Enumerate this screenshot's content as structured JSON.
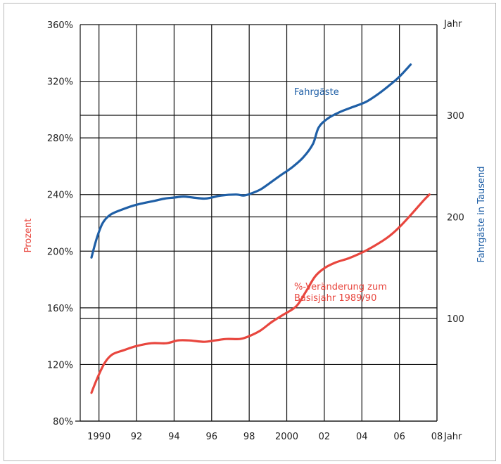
{
  "chart_data": {
    "type": "line",
    "left_axis": {
      "label": "Prozent",
      "ticks": [
        "360%",
        "320%",
        "280%",
        "240%",
        "200%",
        "160%",
        "120%",
        "80%"
      ],
      "tick_values": [
        360,
        320,
        280,
        240,
        200,
        160,
        120,
        80
      ],
      "range": [
        80,
        360
      ],
      "color": "#e8463e"
    },
    "right_axis": {
      "label": "Fahrgäste in Tausend",
      "top_label": "Jahr",
      "ticks": [
        "300",
        "200",
        "100"
      ],
      "tick_values": [
        300,
        200,
        100
      ],
      "range": [
        0,
        300
      ],
      "color": "#1f5fa6"
    },
    "x_axis": {
      "label": "Jahr",
      "ticks": [
        "1990",
        "92",
        "94",
        "96",
        "98",
        "2000",
        "02",
        "04",
        "06",
        "08"
      ],
      "tick_values": [
        1990,
        1992,
        1994,
        1996,
        1998,
        2000,
        2002,
        2004,
        2006,
        2008
      ],
      "range": [
        1989,
        2008
      ]
    },
    "grid": true,
    "series": [
      {
        "name": "Fahrgäste",
        "axis": "right",
        "color": "#1f5fa6",
        "points": [
          [
            1989.6,
            160
          ],
          [
            1989.9,
            180
          ],
          [
            1990.2,
            194
          ],
          [
            1990.6,
            202
          ],
          [
            1991.2,
            207
          ],
          [
            1992.0,
            212
          ],
          [
            1993.0,
            216
          ],
          [
            1993.5,
            218
          ],
          [
            1994.0,
            219
          ],
          [
            1994.5,
            220
          ],
          [
            1995.0,
            219
          ],
          [
            1995.6,
            218
          ],
          [
            1996.0,
            219
          ],
          [
            1996.5,
            221
          ],
          [
            1997.3,
            222
          ],
          [
            1997.7,
            221
          ],
          [
            1998.1,
            223
          ],
          [
            1998.6,
            227
          ],
          [
            1999.0,
            232
          ],
          [
            1999.6,
            240
          ],
          [
            2000.3,
            249
          ],
          [
            2000.9,
            259
          ],
          [
            2001.4,
            272
          ],
          [
            2001.7,
            288
          ],
          [
            2002.2,
            297
          ],
          [
            2002.8,
            303
          ],
          [
            2003.5,
            308
          ],
          [
            2004.2,
            313
          ],
          [
            2004.8,
            320
          ],
          [
            2005.5,
            330
          ],
          [
            2006.0,
            338
          ],
          [
            2006.6,
            350
          ]
        ]
      },
      {
        "name": "%-Veränderung zum Basisjahr 1989/90",
        "axis": "left",
        "color": "#e8463e",
        "points": [
          [
            1989.6,
            100
          ],
          [
            1989.9,
            110
          ],
          [
            1990.3,
            121
          ],
          [
            1990.7,
            127
          ],
          [
            1991.3,
            130
          ],
          [
            1992.0,
            133
          ],
          [
            1992.8,
            135
          ],
          [
            1993.6,
            135
          ],
          [
            1994.2,
            137
          ],
          [
            1994.8,
            137
          ],
          [
            1995.6,
            136
          ],
          [
            1996.2,
            137
          ],
          [
            1996.8,
            138
          ],
          [
            1997.5,
            138
          ],
          [
            1998.0,
            140
          ],
          [
            1998.6,
            144
          ],
          [
            1999.2,
            150
          ],
          [
            1999.8,
            155
          ],
          [
            2000.5,
            161
          ],
          [
            2001.0,
            171
          ],
          [
            2001.5,
            182
          ],
          [
            2002.0,
            188
          ],
          [
            2002.6,
            192
          ],
          [
            2003.3,
            195
          ],
          [
            2004.0,
            199
          ],
          [
            2004.7,
            204
          ],
          [
            2005.4,
            210
          ],
          [
            2006.0,
            217
          ],
          [
            2006.7,
            227
          ],
          [
            2007.3,
            236
          ],
          [
            2007.6,
            240
          ]
        ]
      }
    ],
    "annotations": [
      {
        "text": "Fahrgäste",
        "series": 0
      },
      {
        "text": "%-Veränderung zum",
        "series": 1
      },
      {
        "text": "Basisjahr 1989/90",
        "series": 1
      }
    ]
  }
}
